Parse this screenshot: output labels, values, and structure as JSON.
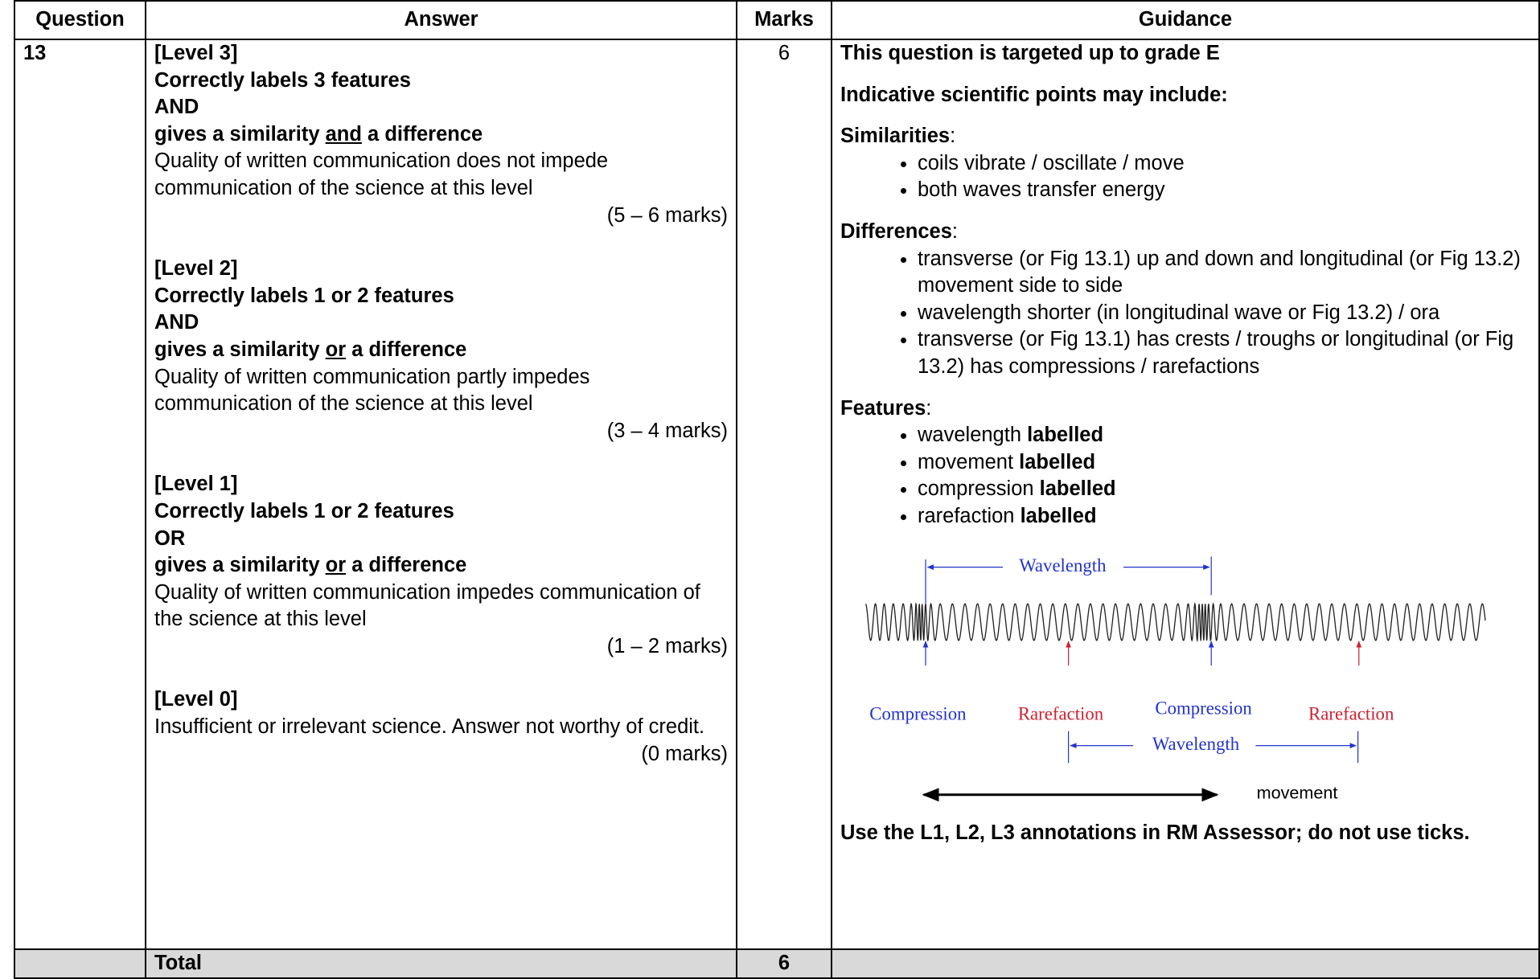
{
  "table": {
    "headers": [
      "Question",
      "Answer",
      "Marks",
      "Guidance"
    ],
    "rows": [
      {
        "question": "13",
        "answer": {
          "levels": [
            {
              "title": "[Level 3]",
              "criteria": [
                "Correctly labels 3 features",
                "AND",
                {
                  "before": "gives a similarity ",
                  "underlined": "and",
                  "after": " a difference"
                }
              ],
              "description": "Quality of written communication does not impede communication of the science at this level",
              "marks": "(5 – 6 marks)"
            },
            {
              "title": "[Level 2]",
              "criteria": [
                "Correctly labels 1 or 2 features",
                "AND",
                {
                  "before": "gives a similarity ",
                  "underlined": "or",
                  "after": " a difference"
                }
              ],
              "description": "Quality of written communication partly impedes communication of the science at this level",
              "marks": "(3 – 4 marks)"
            },
            {
              "title": "[Level 1]",
              "criteria": [
                "Correctly labels 1 or 2 features",
                "OR",
                {
                  "before": "gives a similarity ",
                  "underlined": "or",
                  "after": " a difference"
                }
              ],
              "description": "Quality of written communication impedes communication of the science at this level",
              "marks": "(1 – 2 marks)"
            },
            {
              "title": "[Level 0]",
              "criteria": [],
              "description": "Insufficient or irrelevant science. Answer not worthy of credit.",
              "marks": "(0 marks)"
            }
          ]
        },
        "marks": "6",
        "guidance": {
          "target": "This question is targeted up to grade E",
          "intro": "Indicative scientific points may include:",
          "sections": [
            {
              "heading": "Similarities",
              "suffix": ":",
              "items": [
                {
                  "text": "coils vibrate / oscillate / move"
                },
                {
                  "text": "both waves transfer energy"
                }
              ]
            },
            {
              "heading": "Differences",
              "suffix": ":",
              "items": [
                {
                  "text": "transverse (or Fig 13.1) up and down and longitudinal (or Fig 13.2) movement side to side"
                },
                {
                  "text": "wavelength shorter (in longitudinal wave or Fig 13.2) / ora"
                },
                {
                  "text": "transverse (or Fig 13.1) has crests / troughs or longitudinal (or Fig 13.2) has compressions / rarefactions"
                }
              ]
            },
            {
              "heading": "Features",
              "suffix": ":",
              "items": [
                {
                  "text": "wavelength ",
                  "bold": "labelled"
                },
                {
                  "text": "movement ",
                  "bold": "labelled"
                },
                {
                  "text": "compression ",
                  "bold": "labelled"
                },
                {
                  "text": "rarefaction ",
                  "bold": "labelled"
                }
              ]
            }
          ],
          "diagram": {
            "top_wavelength": "Wavelength",
            "labels": [
              "Compression",
              "Rarefaction",
              "Compression",
              "Rarefaction"
            ],
            "bottom_wavelength": "Wavelength",
            "movement": "movement"
          },
          "footer": "Use the L1, L2, L3 annotations in RM Assessor; do not use ticks."
        }
      }
    ],
    "total": {
      "label": "Total",
      "marks": "6"
    }
  }
}
